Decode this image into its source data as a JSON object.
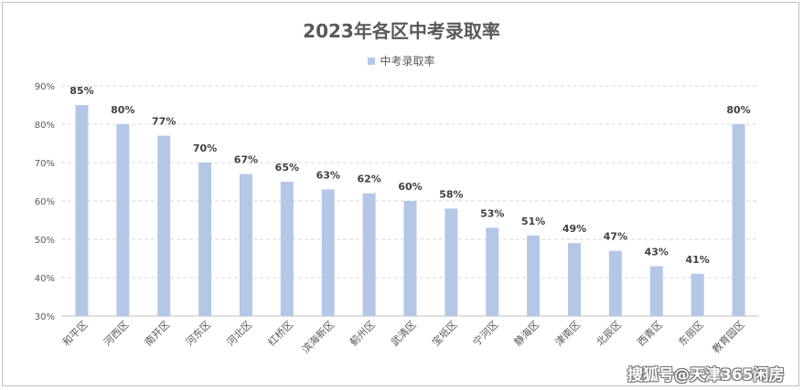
{
  "chart_data": {
    "type": "bar",
    "title": "2023年各区中考录取率",
    "legend": "中考录取率",
    "legend_position": "top",
    "categories": [
      "和平区",
      "河西区",
      "南开区",
      "河东区",
      "河北区",
      "红桥区",
      "滨海新区",
      "蓟州区",
      "武清区",
      "宝坻区",
      "宁河区",
      "静海区",
      "津南区",
      "北辰区",
      "西青区",
      "东丽区",
      "教育园区"
    ],
    "values": [
      85,
      80,
      77,
      70,
      67,
      65,
      63,
      62,
      60,
      58,
      53,
      51,
      49,
      47,
      43,
      41,
      80
    ],
    "value_labels": [
      "85%",
      "80%",
      "77%",
      "70%",
      "67%",
      "65%",
      "63%",
      "62%",
      "60%",
      "58%",
      "53%",
      "51%",
      "49%",
      "47%",
      "43%",
      "41%",
      "80%"
    ],
    "ylim": [
      30,
      90
    ],
    "yticks": [
      30,
      40,
      50,
      60,
      70,
      80,
      90
    ],
    "ytick_labels": [
      "30%",
      "40%",
      "50%",
      "60%",
      "70%",
      "80%",
      "90%"
    ],
    "grid": "horizontal dashed",
    "bar_color": "#b4c7e7"
  },
  "watermark": "搜狐号@天津365闲房"
}
